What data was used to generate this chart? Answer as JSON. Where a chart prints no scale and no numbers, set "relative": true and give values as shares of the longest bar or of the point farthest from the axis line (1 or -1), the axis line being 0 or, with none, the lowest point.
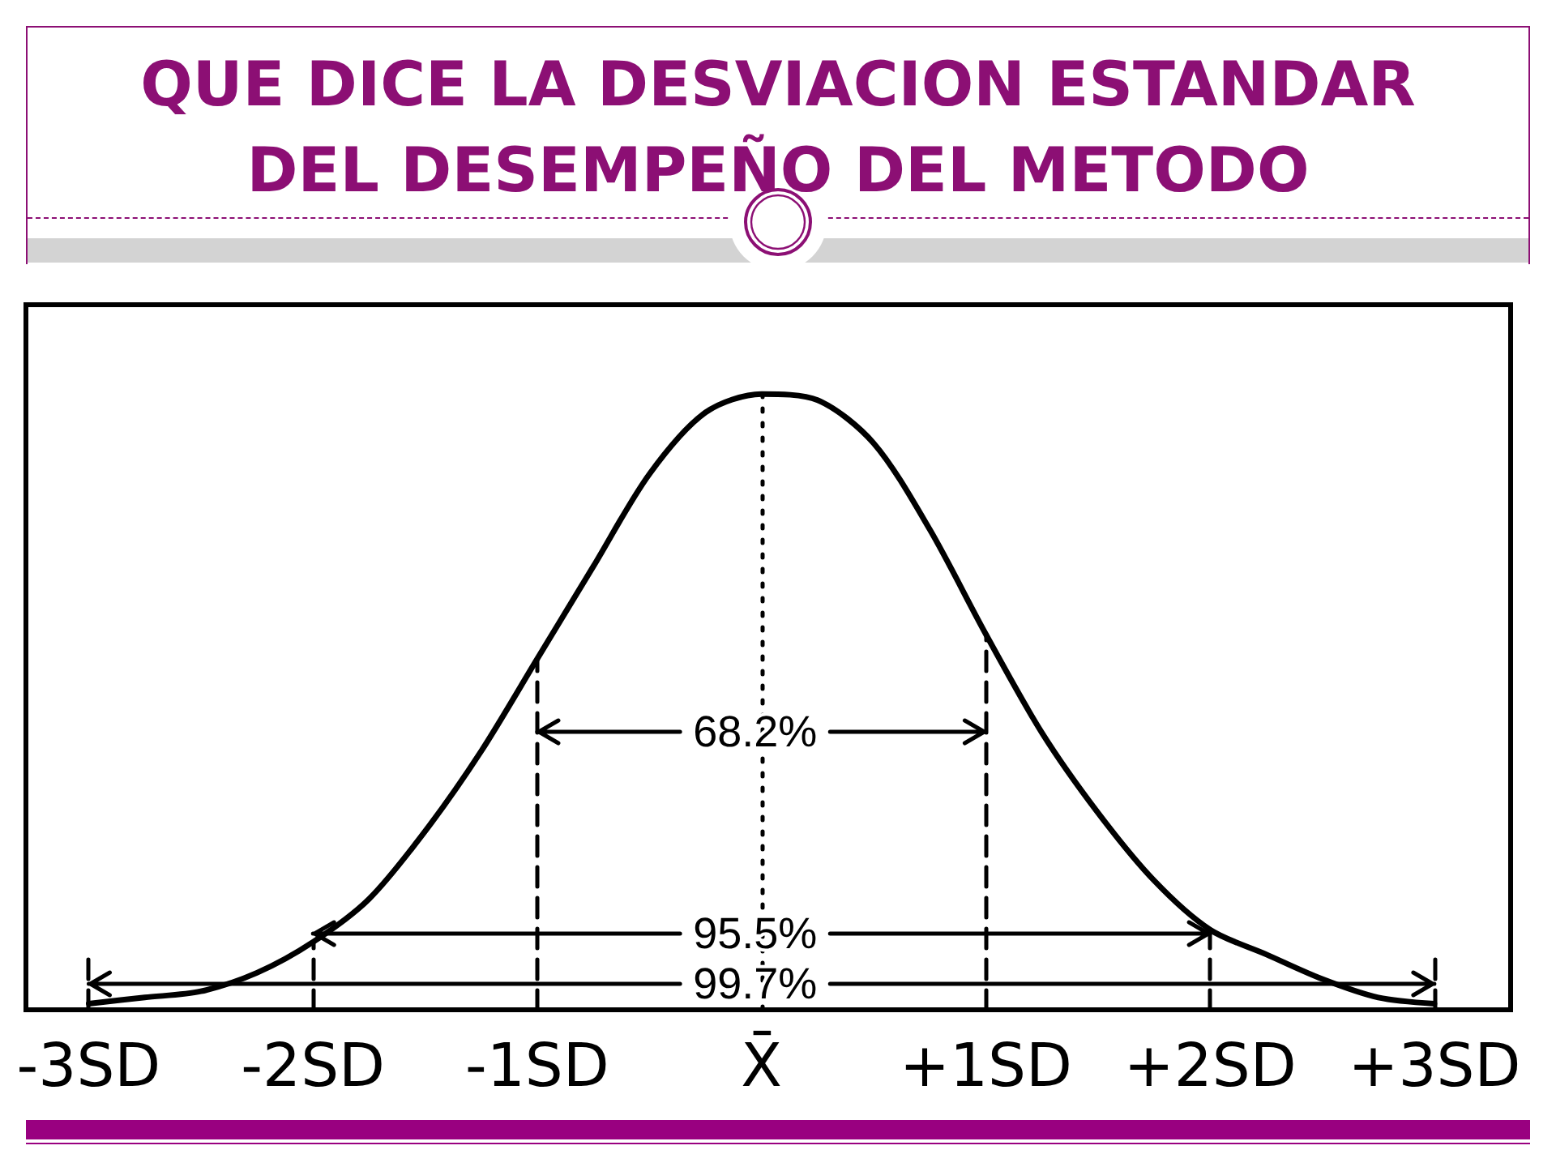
{
  "chart_data": {
    "type": "line",
    "title": "QUE DICE LA DESVIACION ESTANDAR DEL DESEMPEÑO DEL METODO",
    "relative": true,
    "color": "#000000",
    "marker": "none",
    "x": [
      -3,
      -2.75,
      -2.5,
      -2.25,
      -2,
      -1.75,
      -1.5,
      -1.25,
      -1,
      -0.75,
      -0.5,
      -0.25,
      0,
      0.25,
      0.5,
      0.75,
      1,
      1.25,
      1.5,
      1.75,
      2,
      2.25,
      2.5,
      2.75,
      3
    ],
    "values": [
      0.01,
      0.02,
      0.03,
      0.06,
      0.11,
      0.18,
      0.29,
      0.42,
      0.57,
      0.72,
      0.87,
      0.97,
      1,
      0.99,
      0.92,
      0.78,
      0.61,
      0.45,
      0.32,
      0.21,
      0.13,
      0.09,
      0.05,
      0.02,
      0.01
    ],
    "xlim": [
      -3.28,
      3.34
    ],
    "xticks": [
      {
        "value": -3,
        "label": "-3SD"
      },
      {
        "value": -2,
        "label": "-2SD"
      },
      {
        "value": -1,
        "label": "-1SD"
      },
      {
        "value": 0,
        "label": "X̄"
      },
      {
        "value": 1,
        "label": "+1SD"
      },
      {
        "value": 2,
        "label": "+2SD"
      },
      {
        "value": 3,
        "label": "+3SD"
      }
    ],
    "tick_labels": "x",
    "ref_lines": [
      {
        "axis": "x",
        "value": -3,
        "line_style": "dashed",
        "color": "#000000"
      },
      {
        "axis": "x",
        "value": -2,
        "line_style": "dashed",
        "color": "#000000"
      },
      {
        "axis": "x",
        "value": -1,
        "line_style": "dashed",
        "color": "#000000"
      },
      {
        "axis": "x",
        "value": 0,
        "line_style": "dotted",
        "color": "#000000"
      },
      {
        "axis": "x",
        "value": 1,
        "line_style": "dashed",
        "color": "#000000"
      },
      {
        "axis": "x",
        "value": 2,
        "line_style": "dashed",
        "color": "#000000"
      },
      {
        "axis": "x",
        "value": 3,
        "line_style": "dashed",
        "color": "#000000"
      }
    ],
    "annotations": [
      "68.2%",
      "95.5%",
      "99.7%"
    ]
  }
}
